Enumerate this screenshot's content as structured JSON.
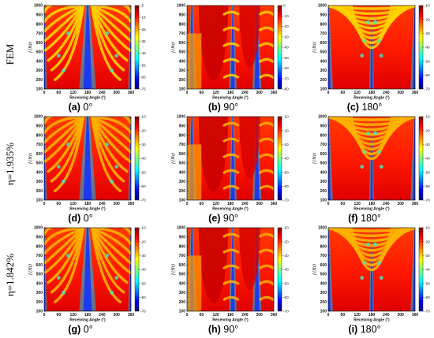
{
  "row_labels": [
    "FEM",
    "η=1.935%",
    "η=1.842%"
  ],
  "chart_data": [
    {
      "id": "a",
      "caption_letter": "(a)",
      "caption_angle": "0°",
      "type": "heatmap",
      "row": 0,
      "col": 0,
      "xlabel": "Receiving Angle (°)",
      "ylabel": "f (Hz)",
      "xticks": [
        0,
        60,
        120,
        180,
        240,
        300,
        360
      ],
      "yticks": [
        100,
        200,
        300,
        400,
        500,
        600,
        700,
        800,
        900,
        1000
      ],
      "xlim": [
        0,
        360
      ],
      "ylim": [
        100,
        1000
      ],
      "colorbar_ticks": [
        -5,
        -15,
        -25,
        -35,
        -45,
        -55,
        -65,
        -75
      ],
      "colorbar_range": [
        -75,
        -5
      ],
      "colormap": "jet",
      "source_angle_deg": 0
    },
    {
      "id": "b",
      "caption_letter": "(b)",
      "caption_angle": "90°",
      "type": "heatmap",
      "row": 0,
      "col": 1,
      "xlabel": "Receiving Angle (°)",
      "ylabel": "f (Hz)",
      "xticks": [
        0,
        60,
        120,
        180,
        240,
        300,
        360
      ],
      "yticks": [
        100,
        200,
        300,
        400,
        500,
        600,
        700,
        800,
        900,
        1000
      ],
      "xlim": [
        0,
        360
      ],
      "ylim": [
        100,
        1000
      ],
      "colorbar_ticks": [
        0,
        -10,
        -20,
        -30,
        -40,
        -50,
        -60,
        -70,
        -80
      ],
      "colorbar_range": [
        -80,
        0
      ],
      "colormap": "jet",
      "source_angle_deg": 90
    },
    {
      "id": "c",
      "caption_letter": "(c)",
      "caption_angle": "180°",
      "type": "heatmap",
      "row": 0,
      "col": 2,
      "xlabel": "Receiving Angle (°)",
      "ylabel": "f (Hz)",
      "xticks": [
        0,
        60,
        120,
        180,
        240,
        300,
        360
      ],
      "yticks": [
        100,
        200,
        300,
        400,
        500,
        600,
        700,
        800,
        900,
        1000
      ],
      "xlim": [
        0,
        360
      ],
      "ylim": [
        100,
        1000
      ],
      "colorbar_ticks": [
        -10,
        -20,
        -30,
        -40,
        -50,
        -60,
        -70
      ],
      "colorbar_range": [
        -70,
        -10
      ],
      "colormap": "jet",
      "source_angle_deg": 180
    },
    {
      "id": "d",
      "caption_letter": "(d)",
      "caption_angle": "0°",
      "type": "heatmap",
      "row": 1,
      "col": 0,
      "xlabel": "Receiving Angle (°)",
      "ylabel": "f (Hz)",
      "xticks": [
        0,
        60,
        120,
        180,
        240,
        300,
        360
      ],
      "yticks": [
        100,
        200,
        300,
        400,
        500,
        600,
        700,
        800,
        900,
        1000
      ],
      "xlim": [
        0,
        360
      ],
      "ylim": [
        100,
        1000
      ],
      "colorbar_ticks": [
        -10,
        -20,
        -30,
        -40,
        -50,
        -60,
        -70
      ],
      "colorbar_range": [
        -70,
        -10
      ],
      "colormap": "jet",
      "source_angle_deg": 0
    },
    {
      "id": "e",
      "caption_letter": "(e)",
      "caption_angle": "90°",
      "type": "heatmap",
      "row": 1,
      "col": 1,
      "xlabel": "Receiving Angle (°)",
      "ylabel": "f (Hz)",
      "xticks": [
        0,
        60,
        120,
        180,
        240,
        300,
        360
      ],
      "yticks": [
        100,
        200,
        300,
        400,
        500,
        600,
        700,
        800,
        900,
        1000
      ],
      "xlim": [
        0,
        360
      ],
      "ylim": [
        100,
        1000
      ],
      "colorbar_ticks": [
        -10,
        -20,
        -30,
        -40,
        -50,
        -60,
        -70
      ],
      "colorbar_range": [
        -70,
        -10
      ],
      "colormap": "jet",
      "source_angle_deg": 90
    },
    {
      "id": "f",
      "caption_letter": "(f)",
      "caption_angle": "180°",
      "type": "heatmap",
      "row": 1,
      "col": 2,
      "xlabel": "Receiving Angle (°)",
      "ylabel": "f (Hz)",
      "xticks": [
        0,
        60,
        120,
        180,
        240,
        300,
        360
      ],
      "yticks": [
        100,
        200,
        300,
        400,
        500,
        600,
        700,
        800,
        900,
        1000
      ],
      "xlim": [
        0,
        360
      ],
      "ylim": [
        100,
        1000
      ],
      "colorbar_ticks": [
        -10,
        -20,
        -30,
        -40,
        -50,
        -60,
        -70
      ],
      "colorbar_range": [
        -70,
        -10
      ],
      "colormap": "jet",
      "source_angle_deg": 180
    },
    {
      "id": "g",
      "caption_letter": "(g)",
      "caption_angle": "0°",
      "type": "heatmap",
      "row": 2,
      "col": 0,
      "xlabel": "Receiving Angle (°)",
      "ylabel": "f (Hz)",
      "xticks": [
        0,
        60,
        120,
        180,
        240,
        300,
        360
      ],
      "yticks": [
        100,
        200,
        300,
        400,
        500,
        600,
        700,
        800,
        900,
        1000
      ],
      "xlim": [
        0,
        360
      ],
      "ylim": [
        100,
        1000
      ],
      "colorbar_ticks": [
        -10,
        -20,
        -30,
        -40,
        -50,
        -60,
        -70
      ],
      "colorbar_range": [
        -70,
        -10
      ],
      "colormap": "jet",
      "source_angle_deg": 0
    },
    {
      "id": "h",
      "caption_letter": "(h)",
      "caption_angle": "90°",
      "type": "heatmap",
      "row": 2,
      "col": 1,
      "xlabel": "Receiving Angle (°)",
      "ylabel": "f (Hz)",
      "xticks": [
        0,
        60,
        120,
        180,
        240,
        300,
        360
      ],
      "yticks": [
        100,
        200,
        300,
        400,
        500,
        600,
        700,
        800,
        900,
        1000
      ],
      "xlim": [
        0,
        360
      ],
      "ylim": [
        100,
        1000
      ],
      "colorbar_ticks": [
        -10,
        -20,
        -30,
        -40,
        -50,
        -60,
        -70
      ],
      "colorbar_range": [
        -70,
        -10
      ],
      "colormap": "jet",
      "source_angle_deg": 90
    },
    {
      "id": "i",
      "caption_letter": "(i)",
      "caption_angle": "180°",
      "type": "heatmap",
      "row": 2,
      "col": 2,
      "xlabel": "Receiving Angle (°)",
      "ylabel": "f (Hz)",
      "xticks": [
        0,
        60,
        120,
        180,
        240,
        300,
        360
      ],
      "yticks": [
        100,
        200,
        300,
        400,
        500,
        600,
        700,
        800,
        900,
        1000
      ],
      "xlim": [
        0,
        360
      ],
      "ylim": [
        100,
        1000
      ],
      "colorbar_ticks": [
        -10,
        -20,
        -30,
        -40,
        -50,
        -60,
        -70
      ],
      "colorbar_range": [
        -70,
        -10
      ],
      "colormap": "jet",
      "source_angle_deg": 180
    }
  ]
}
